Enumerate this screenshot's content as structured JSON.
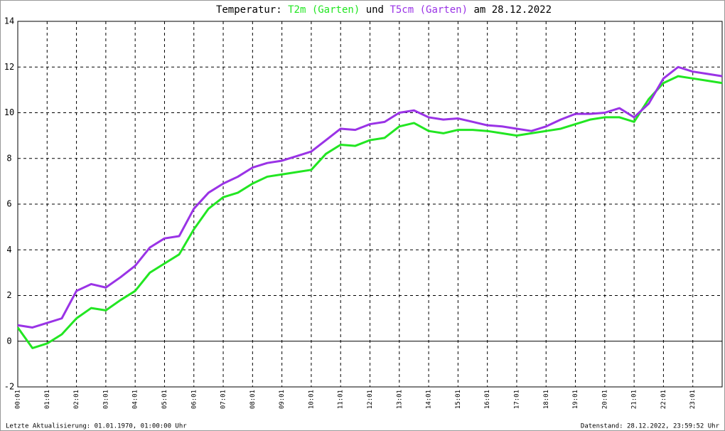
{
  "chart_data": {
    "type": "line",
    "title": "Temperatur:",
    "title_join": "und",
    "title_date": "am 28.12.2022",
    "x": [
      0,
      0.5,
      1,
      1.5,
      2,
      2.5,
      3,
      3.5,
      4,
      4.5,
      5,
      5.5,
      6,
      6.5,
      7,
      7.5,
      8,
      8.5,
      9,
      9.5,
      10,
      10.5,
      11,
      11.5,
      12,
      12.5,
      13,
      13.5,
      14,
      14.5,
      15,
      15.5,
      16,
      16.5,
      17,
      17.5,
      18,
      18.5,
      19,
      19.5,
      20,
      20.5,
      21,
      21.5,
      22,
      22.5,
      23,
      23.5,
      24
    ],
    "series": [
      {
        "name": "T2m (Garten)",
        "color": "#22e622",
        "values": [
          0.6,
          -0.3,
          -0.1,
          0.3,
          1.0,
          1.45,
          1.35,
          1.8,
          2.2,
          3.0,
          3.4,
          3.8,
          4.9,
          5.8,
          6.3,
          6.5,
          6.9,
          7.2,
          7.3,
          7.4,
          7.5,
          8.2,
          8.6,
          8.55,
          8.8,
          8.9,
          9.4,
          9.55,
          9.2,
          9.1,
          9.25,
          9.25,
          9.2,
          9.1,
          9.0,
          9.1,
          9.2,
          9.3,
          9.5,
          9.7,
          9.8,
          9.8,
          9.6,
          10.6,
          11.3,
          11.6,
          11.5,
          11.4,
          11.3
        ]
      },
      {
        "name": "T5cm (Garten)",
        "color": "#9a33e6",
        "values": [
          0.7,
          0.6,
          0.8,
          1.0,
          2.2,
          2.5,
          2.35,
          2.8,
          3.3,
          4.1,
          4.5,
          4.6,
          5.8,
          6.5,
          6.9,
          7.2,
          7.6,
          7.8,
          7.9,
          8.1,
          8.3,
          8.8,
          9.3,
          9.25,
          9.5,
          9.6,
          10.0,
          10.1,
          9.8,
          9.7,
          9.75,
          9.6,
          9.45,
          9.4,
          9.3,
          9.2,
          9.4,
          9.7,
          9.95,
          9.95,
          10.0,
          10.2,
          9.8,
          10.4,
          11.5,
          12.0,
          11.8,
          11.7,
          11.6
        ]
      }
    ],
    "xlim": [
      0,
      24
    ],
    "xticks": [
      {
        "value": 0,
        "label": "00:01"
      },
      {
        "value": 1,
        "label": "01:01"
      },
      {
        "value": 2,
        "label": "02:01"
      },
      {
        "value": 3,
        "label": "03:01"
      },
      {
        "value": 4,
        "label": "04:01"
      },
      {
        "value": 5,
        "label": "05:01"
      },
      {
        "value": 6,
        "label": "06:01"
      },
      {
        "value": 7,
        "label": "07:01"
      },
      {
        "value": 8,
        "label": "08:01"
      },
      {
        "value": 9,
        "label": "09:01"
      },
      {
        "value": 10,
        "label": "10:01"
      },
      {
        "value": 11,
        "label": "11:01"
      },
      {
        "value": 12,
        "label": "12:01"
      },
      {
        "value": 13,
        "label": "13:01"
      },
      {
        "value": 14,
        "label": "14:01"
      },
      {
        "value": 15,
        "label": "15:01"
      },
      {
        "value": 16,
        "label": "16:01"
      },
      {
        "value": 17,
        "label": "17:01"
      },
      {
        "value": 18,
        "label": "18:01"
      },
      {
        "value": 19,
        "label": "19:01"
      },
      {
        "value": 20,
        "label": "20:01"
      },
      {
        "value": 21,
        "label": "21:01"
      },
      {
        "value": 22,
        "label": "22:01"
      },
      {
        "value": 23,
        "label": "23:01"
      }
    ],
    "ylim": [
      -2,
      14
    ],
    "yticks": [
      -2,
      0,
      2,
      4,
      6,
      8,
      10,
      12,
      14
    ],
    "grid": true,
    "footer_left": "Letzte Aktualisierung: 01.01.1970, 01:00:00 Uhr",
    "footer_right": "Datenstand: 28.12.2022, 23:59:52 Uhr"
  }
}
